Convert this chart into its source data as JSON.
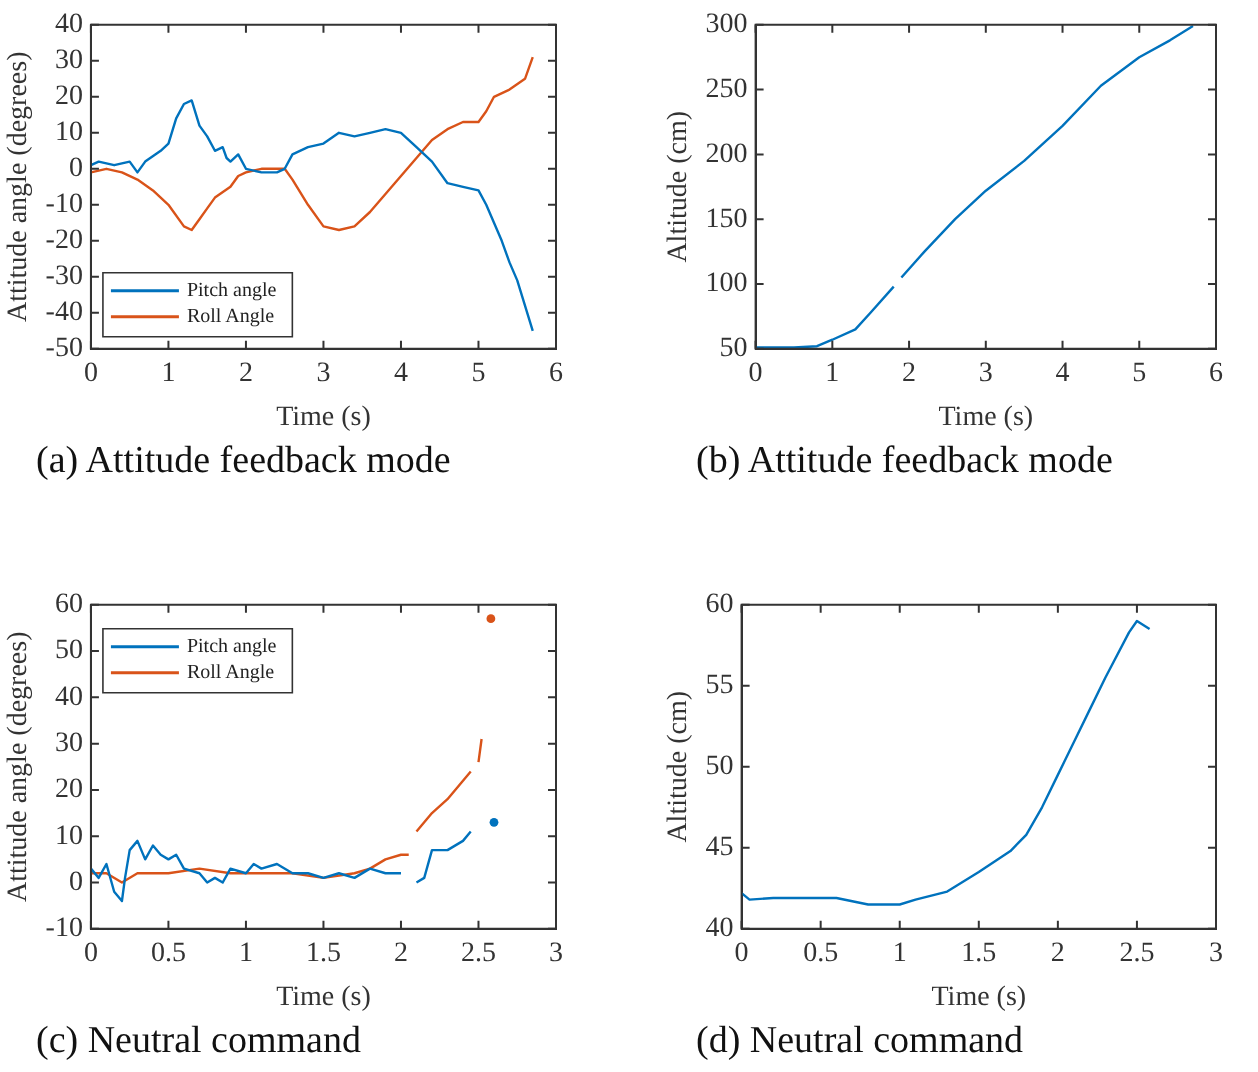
{
  "chart_data": [
    {
      "type": "line",
      "xlabel": "Time (s)",
      "ylabel": "Attitude angle (degrees)",
      "annotations": [
        "(a) Attitude feedback mode"
      ],
      "xlim": [
        0,
        6
      ],
      "xticks": [
        0,
        1,
        2,
        3,
        4,
        5,
        6
      ],
      "ylim": [
        -50,
        40
      ],
      "yticks": [
        -50,
        -40,
        -30,
        -20,
        -10,
        0,
        10,
        20,
        30,
        40
      ],
      "legend": "bottom left",
      "grid": false,
      "series": [
        {
          "name": "Pitch angle",
          "color": "#0072bd",
          "x": [
            0,
            0.1,
            0.3,
            0.5,
            0.6,
            0.7,
            0.9,
            1.0,
            1.1,
            1.2,
            1.3,
            1.4,
            1.5,
            1.6,
            1.7,
            1.75,
            1.8,
            1.9,
            2.0,
            2.2,
            2.4,
            2.5,
            2.6,
            2.8,
            3.0,
            3.2,
            3.4,
            3.6,
            3.8,
            4.0,
            4.2,
            4.4,
            4.6,
            4.8,
            5.0,
            5.1,
            5.2,
            5.3,
            5.4,
            5.5,
            5.6,
            5.7
          ],
          "values": [
            1,
            2,
            1,
            2,
            -1,
            2,
            5,
            7,
            14,
            18,
            19,
            12,
            9,
            5,
            6,
            3,
            2,
            4,
            0,
            -1,
            -1,
            0,
            4,
            6,
            7,
            10,
            9,
            10,
            11,
            10,
            6,
            2,
            -4,
            -5,
            -6,
            -10,
            -15,
            -20,
            -26,
            -31,
            -38,
            -45
          ]
        },
        {
          "name": "Roll Angle",
          "color": "#d95319",
          "x": [
            0,
            0.2,
            0.4,
            0.6,
            0.8,
            1.0,
            1.2,
            1.3,
            1.4,
            1.5,
            1.6,
            1.8,
            1.9,
            2.0,
            2.2,
            2.5,
            2.6,
            2.8,
            3.0,
            3.2,
            3.4,
            3.6,
            3.8,
            4.0,
            4.2,
            4.4,
            4.6,
            4.8,
            5.0,
            5.1,
            5.2,
            5.4,
            5.6,
            5.7
          ],
          "values": [
            -1,
            0,
            -1,
            -3,
            -6,
            -10,
            -16,
            -17,
            -14,
            -11,
            -8,
            -5,
            -2,
            -1,
            0,
            0,
            -3,
            -10,
            -16,
            -17,
            -16,
            -12,
            -7,
            -2,
            3,
            8,
            11,
            13,
            13,
            16,
            20,
            22,
            25,
            31
          ]
        }
      ]
    },
    {
      "type": "line",
      "xlabel": "Time (s)",
      "ylabel": "Altitude (cm)",
      "annotations": [
        "(b) Attitude feedback mode"
      ],
      "xlim": [
        0,
        6
      ],
      "xticks": [
        0,
        1,
        2,
        3,
        4,
        5,
        6
      ],
      "ylim": [
        50,
        300
      ],
      "yticks": [
        50,
        100,
        150,
        200,
        250,
        300
      ],
      "grid": false,
      "series": [
        {
          "color": "#0072bd",
          "x": [
            0,
            0.5,
            0.8,
            1.0,
            1.3,
            1.5,
            1.8,
            1.85,
            1.9,
            2.2,
            2.6,
            3.0,
            3.5,
            4.0,
            4.5,
            5.0,
            5.4,
            5.7
          ],
          "values": [
            51,
            51,
            52,
            57,
            65,
            78,
            98,
            null,
            105,
            125,
            150,
            172,
            195,
            222,
            253,
            275,
            288,
            299
          ]
        }
      ]
    },
    {
      "type": "line",
      "xlabel": "Time (s)",
      "ylabel": "Attitude angle (degrees)",
      "annotations": [
        "(c) Neutral command"
      ],
      "xlim": [
        0,
        3
      ],
      "xticks": [
        0,
        0.5,
        1,
        1.5,
        2,
        2.5,
        3
      ],
      "ylim": [
        -10,
        60
      ],
      "yticks": [
        -10,
        0,
        10,
        20,
        30,
        40,
        50,
        60
      ],
      "legend": "top left",
      "grid": false,
      "series": [
        {
          "name": "Pitch angle",
          "color": "#0072bd",
          "x": [
            0,
            0.05,
            0.1,
            0.15,
            0.2,
            0.22,
            0.25,
            0.3,
            0.35,
            0.4,
            0.45,
            0.5,
            0.55,
            0.6,
            0.7,
            0.75,
            0.8,
            0.85,
            0.9,
            1.0,
            1.05,
            1.1,
            1.2,
            1.3,
            1.4,
            1.5,
            1.6,
            1.7,
            1.8,
            1.9,
            2.0,
            2.05,
            2.1,
            2.15,
            2.2,
            2.3,
            2.4,
            2.45,
            2.5,
            2.6
          ],
          "values": [
            3,
            1,
            4,
            -2,
            -4,
            1,
            7,
            9,
            5,
            8,
            6,
            5,
            6,
            3,
            2,
            0,
            1,
            0,
            3,
            2,
            4,
            3,
            4,
            2,
            2,
            1,
            2,
            1,
            3,
            2,
            2,
            null,
            0,
            1,
            7,
            7,
            9,
            11,
            null,
            13
          ]
        },
        {
          "name": "Roll Angle",
          "color": "#d95319",
          "x": [
            0,
            0.1,
            0.2,
            0.3,
            0.5,
            0.7,
            0.9,
            1.1,
            1.3,
            1.5,
            1.7,
            1.8,
            1.9,
            2.0,
            2.05,
            2.08,
            2.1,
            2.2,
            2.3,
            2.4,
            2.45,
            2.48,
            2.5,
            2.52,
            2.55,
            2.58
          ],
          "values": [
            2,
            2,
            0,
            2,
            2,
            3,
            2,
            2,
            2,
            1,
            2,
            3,
            5,
            6,
            6,
            null,
            11,
            15,
            18,
            22,
            24,
            null,
            26,
            31,
            null,
            57
          ]
        }
      ]
    },
    {
      "type": "line",
      "xlabel": "Time (s)",
      "ylabel": "Altitude (cm)",
      "annotations": [
        "(d) Neutral command"
      ],
      "xlim": [
        0,
        3
      ],
      "xticks": [
        0,
        0.5,
        1,
        1.5,
        2,
        2.5,
        3
      ],
      "ylim": [
        40,
        60
      ],
      "yticks": [
        40,
        45,
        50,
        55,
        60
      ],
      "grid": false,
      "series": [
        {
          "color": "#0072bd",
          "x": [
            0,
            0.05,
            0.2,
            0.4,
            0.6,
            0.8,
            1.0,
            1.1,
            1.3,
            1.5,
            1.7,
            1.8,
            1.9,
            2.0,
            2.1,
            2.2,
            2.3,
            2.45,
            2.5,
            2.58
          ],
          "values": [
            42.2,
            41.8,
            41.9,
            41.9,
            41.9,
            41.5,
            41.5,
            41.8,
            42.3,
            43.5,
            44.8,
            45.8,
            47.5,
            49.5,
            51.5,
            53.5,
            55.5,
            58.3,
            59,
            58.5
          ]
        }
      ]
    }
  ]
}
